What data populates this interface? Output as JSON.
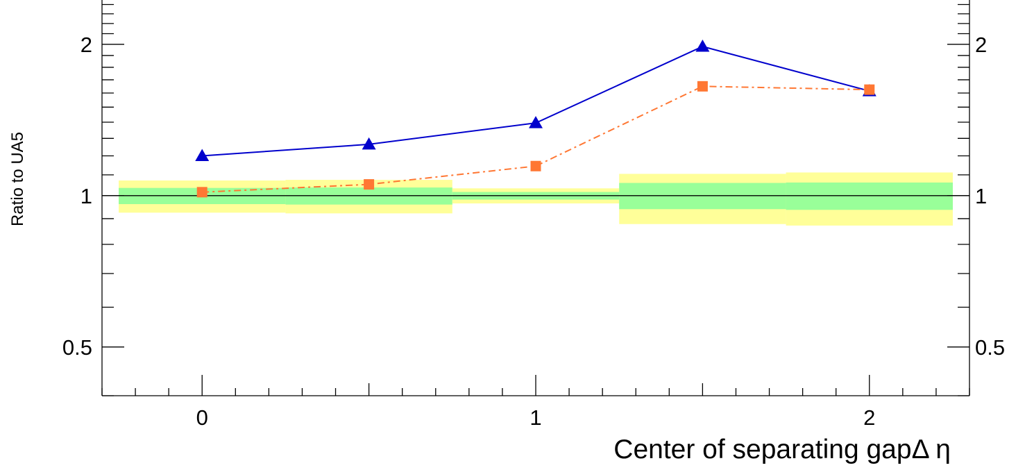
{
  "chart_data": {
    "type": "line",
    "title": "",
    "xlabel": "Center of separating gapΔ η",
    "ylabel": "Ratio to UA5",
    "yscale": "log",
    "xlim": [
      -0.3,
      2.3
    ],
    "ylim": [
      0.4,
      2.45
    ],
    "x_ticks": [
      {
        "value": 0,
        "label": "0"
      },
      {
        "value": 1,
        "label": "1"
      },
      {
        "value": 2,
        "label": "2"
      }
    ],
    "y_ticks": [
      {
        "value": 0.5,
        "label": "0.5"
      },
      {
        "value": 1,
        "label": "1"
      },
      {
        "value": 2,
        "label": "2"
      }
    ],
    "reference_line": 1,
    "bands": [
      {
        "x0": -0.25,
        "x1": 0.25,
        "inner": [
          0.962,
          1.036
        ],
        "outer": [
          0.925,
          1.072
        ]
      },
      {
        "x0": 0.25,
        "x1": 0.75,
        "inner": [
          0.96,
          1.038
        ],
        "outer": [
          0.922,
          1.075
        ]
      },
      {
        "x0": 0.75,
        "x1": 1.25,
        "inner": [
          0.982,
          1.017
        ],
        "outer": [
          0.965,
          1.034
        ]
      },
      {
        "x0": 1.25,
        "x1": 1.75,
        "inner": [
          0.94,
          1.06
        ],
        "outer": [
          0.878,
          1.105
        ]
      },
      {
        "x0": 1.75,
        "x1": 2.25,
        "inner": [
          0.937,
          1.062
        ],
        "outer": [
          0.872,
          1.112
        ]
      }
    ],
    "band_colors": {
      "outer": "#ffff99",
      "inner": "#99ff99"
    },
    "series": [
      {
        "marker": "triangle",
        "line_style": "solid",
        "color": "#0000cc",
        "x": [
          0,
          0.5,
          1,
          1.5,
          2
        ],
        "y": [
          1.2,
          1.265,
          1.395,
          1.98,
          1.615
        ]
      },
      {
        "marker": "square",
        "line_style": "dash-dot",
        "color": "#ff7733",
        "x": [
          0,
          0.5,
          1,
          1.5,
          2
        ],
        "y": [
          1.016,
          1.053,
          1.145,
          1.65,
          1.625
        ]
      }
    ]
  }
}
